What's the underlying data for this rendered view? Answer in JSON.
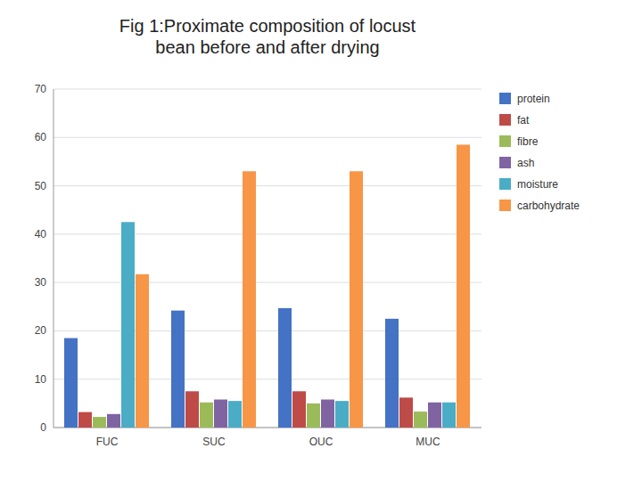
{
  "chart_data": {
    "type": "bar",
    "title": "Fig 1:Proximate composition of locust\nbean before and after drying",
    "categories": [
      "FUC",
      "SUC",
      "OUC",
      "MUC"
    ],
    "series": [
      {
        "name": "protein",
        "color": "#4472C4",
        "values": [
          18.5,
          24.2,
          24.7,
          22.5
        ]
      },
      {
        "name": "fat",
        "color": "#BE4B48",
        "values": [
          3.2,
          7.5,
          7.5,
          6.2
        ]
      },
      {
        "name": "fibre",
        "color": "#9BBB59",
        "values": [
          2.2,
          5.2,
          5.0,
          3.3
        ]
      },
      {
        "name": "ash",
        "color": "#8064A2",
        "values": [
          2.8,
          5.8,
          5.8,
          5.2
        ]
      },
      {
        "name": "moisture",
        "color": "#4BACC6",
        "values": [
          42.5,
          5.5,
          5.5,
          5.2
        ]
      },
      {
        "name": "carbohydrate",
        "color": "#F79646",
        "values": [
          31.7,
          53.0,
          53.0,
          58.5
        ]
      }
    ],
    "ylim": [
      0,
      70
    ],
    "yticks": [
      0,
      10,
      20,
      30,
      40,
      50,
      60,
      70
    ],
    "grid": true,
    "legend": "right"
  }
}
